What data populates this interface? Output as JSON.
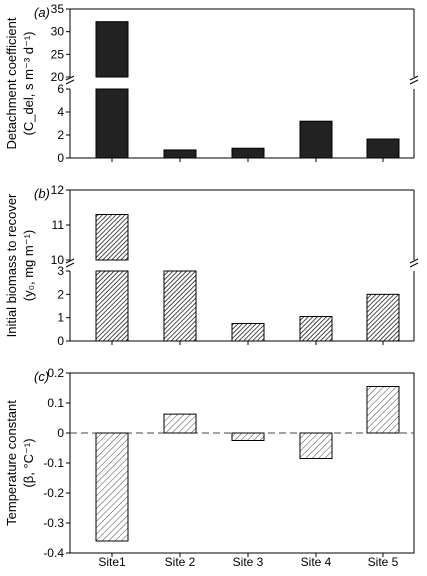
{
  "categories": [
    "Site1",
    "Site 2",
    "Site 3",
    "Site 4",
    "Site 5"
  ],
  "chart_data": [
    {
      "type": "bar",
      "panel_label": "(a)",
      "ylabel_line1": "Detachment coefficient",
      "ylabel_line2": "(C_del, s m⁻³ d⁻¹)",
      "categories": [
        "Site1",
        "Site 2",
        "Site 3",
        "Site 4",
        "Site 5"
      ],
      "values": [
        32.2,
        0.7,
        0.85,
        3.2,
        1.65
      ],
      "axis_break": {
        "lower": [
          0,
          6
        ],
        "upper": [
          20,
          35
        ]
      },
      "lower_ticks": [
        "0",
        "2",
        "4",
        "6"
      ],
      "upper_ticks": [
        "20",
        "25",
        "30",
        "35"
      ],
      "fill": "#222222"
    },
    {
      "type": "bar",
      "panel_label": "(b)",
      "ylabel_line1": "Initial biomass to recover",
      "ylabel_line2": "(y₀, mg m⁻¹)",
      "categories": [
        "Site1",
        "Site 2",
        "Site 3",
        "Site 4",
        "Site 5"
      ],
      "values": [
        11.3,
        3.0,
        0.75,
        1.05,
        2.0
      ],
      "axis_break": {
        "lower": [
          0,
          3
        ],
        "upper": [
          10,
          12
        ]
      },
      "lower_ticks": [
        "0",
        "1",
        "2",
        "3"
      ],
      "upper_ticks": [
        "10",
        "11",
        "12"
      ],
      "fill": "#555555"
    },
    {
      "type": "bar",
      "panel_label": "(c)",
      "ylabel_line1": "Temperature constant",
      "ylabel_line2": "(β, °C⁻¹)",
      "categories": [
        "Site1",
        "Site 2",
        "Site 3",
        "Site 4",
        "Site 5"
      ],
      "values": [
        -0.36,
        0.063,
        -0.025,
        -0.085,
        0.155
      ],
      "ylim": [
        -0.4,
        0.2
      ],
      "ticks": [
        "-0.4",
        "-0.3",
        "-0.2",
        "-0.1",
        "0",
        "0.1",
        "0.2"
      ],
      "zero_line": "dashed",
      "fill": "#888888"
    }
  ]
}
